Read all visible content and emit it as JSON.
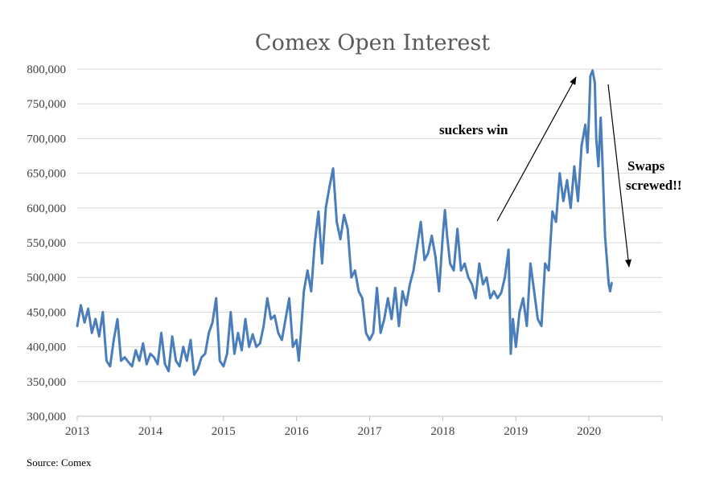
{
  "chart_data": {
    "type": "line",
    "title": "Comex Open Interest",
    "xlabel": "",
    "ylabel": "",
    "x_ticks": [
      "2013",
      "2014",
      "2015",
      "2016",
      "2017",
      "2018",
      "2019",
      "2020"
    ],
    "y_ticks": [
      "300,000",
      "350,000",
      "400,000",
      "450,000",
      "500,000",
      "550,000",
      "600,000",
      "650,000",
      "700,000",
      "750,000",
      "800,000"
    ],
    "xlim": [
      2013.0,
      2021.0
    ],
    "ylim": [
      300000,
      800000
    ],
    "grid": "horizontal",
    "legend": "none",
    "series": [
      {
        "color": "#4a7ebb",
        "points": [
          [
            2013.0,
            430000
          ],
          [
            2013.05,
            460000
          ],
          [
            2013.1,
            435000
          ],
          [
            2013.15,
            455000
          ],
          [
            2013.2,
            420000
          ],
          [
            2013.25,
            440000
          ],
          [
            2013.3,
            415000
          ],
          [
            2013.35,
            450000
          ],
          [
            2013.4,
            380000
          ],
          [
            2013.45,
            372000
          ],
          [
            2013.5,
            410000
          ],
          [
            2013.55,
            440000
          ],
          [
            2013.6,
            380000
          ],
          [
            2013.65,
            385000
          ],
          [
            2013.7,
            378000
          ],
          [
            2013.75,
            372000
          ],
          [
            2013.8,
            395000
          ],
          [
            2013.85,
            380000
          ],
          [
            2013.9,
            405000
          ],
          [
            2013.95,
            375000
          ],
          [
            2014.0,
            390000
          ],
          [
            2014.05,
            385000
          ],
          [
            2014.1,
            375000
          ],
          [
            2014.15,
            420000
          ],
          [
            2014.2,
            375000
          ],
          [
            2014.25,
            365000
          ],
          [
            2014.3,
            415000
          ],
          [
            2014.35,
            380000
          ],
          [
            2014.4,
            372000
          ],
          [
            2014.45,
            400000
          ],
          [
            2014.5,
            380000
          ],
          [
            2014.55,
            410000
          ],
          [
            2014.6,
            360000
          ],
          [
            2014.65,
            368000
          ],
          [
            2014.7,
            385000
          ],
          [
            2014.75,
            390000
          ],
          [
            2014.8,
            420000
          ],
          [
            2014.85,
            435000
          ],
          [
            2014.9,
            470000
          ],
          [
            2014.95,
            380000
          ],
          [
            2015.0,
            372000
          ],
          [
            2015.05,
            390000
          ],
          [
            2015.1,
            450000
          ],
          [
            2015.15,
            390000
          ],
          [
            2015.2,
            420000
          ],
          [
            2015.25,
            395000
          ],
          [
            2015.3,
            440000
          ],
          [
            2015.35,
            400000
          ],
          [
            2015.4,
            418000
          ],
          [
            2015.45,
            400000
          ],
          [
            2015.5,
            405000
          ],
          [
            2015.55,
            430000
          ],
          [
            2015.6,
            470000
          ],
          [
            2015.65,
            440000
          ],
          [
            2015.7,
            445000
          ],
          [
            2015.75,
            420000
          ],
          [
            2015.8,
            410000
          ],
          [
            2015.85,
            440000
          ],
          [
            2015.9,
            470000
          ],
          [
            2015.95,
            400000
          ],
          [
            2016.0,
            410000
          ],
          [
            2016.03,
            380000
          ],
          [
            2016.06,
            420000
          ],
          [
            2016.1,
            480000
          ],
          [
            2016.15,
            510000
          ],
          [
            2016.2,
            480000
          ],
          [
            2016.25,
            550000
          ],
          [
            2016.3,
            595000
          ],
          [
            2016.35,
            520000
          ],
          [
            2016.4,
            600000
          ],
          [
            2016.45,
            630000
          ],
          [
            2016.5,
            657000
          ],
          [
            2016.55,
            580000
          ],
          [
            2016.6,
            555000
          ],
          [
            2016.65,
            590000
          ],
          [
            2016.7,
            570000
          ],
          [
            2016.75,
            500000
          ],
          [
            2016.8,
            510000
          ],
          [
            2016.85,
            480000
          ],
          [
            2016.9,
            470000
          ],
          [
            2016.95,
            420000
          ],
          [
            2017.0,
            410000
          ],
          [
            2017.05,
            420000
          ],
          [
            2017.1,
            485000
          ],
          [
            2017.15,
            420000
          ],
          [
            2017.2,
            440000
          ],
          [
            2017.25,
            470000
          ],
          [
            2017.3,
            440000
          ],
          [
            2017.35,
            485000
          ],
          [
            2017.4,
            430000
          ],
          [
            2017.45,
            480000
          ],
          [
            2017.5,
            460000
          ],
          [
            2017.55,
            490000
          ],
          [
            2017.6,
            510000
          ],
          [
            2017.65,
            545000
          ],
          [
            2017.7,
            580000
          ],
          [
            2017.75,
            525000
          ],
          [
            2017.8,
            535000
          ],
          [
            2017.85,
            560000
          ],
          [
            2017.9,
            530000
          ],
          [
            2017.95,
            480000
          ],
          [
            2018.0,
            560000
          ],
          [
            2018.03,
            597000
          ],
          [
            2018.06,
            560000
          ],
          [
            2018.1,
            520000
          ],
          [
            2018.15,
            510000
          ],
          [
            2018.2,
            570000
          ],
          [
            2018.25,
            510000
          ],
          [
            2018.3,
            520000
          ],
          [
            2018.35,
            500000
          ],
          [
            2018.4,
            490000
          ],
          [
            2018.45,
            470000
          ],
          [
            2018.5,
            520000
          ],
          [
            2018.55,
            490000
          ],
          [
            2018.6,
            500000
          ],
          [
            2018.65,
            470000
          ],
          [
            2018.7,
            480000
          ],
          [
            2018.75,
            470000
          ],
          [
            2018.8,
            478000
          ],
          [
            2018.85,
            500000
          ],
          [
            2018.9,
            540000
          ],
          [
            2018.93,
            390000
          ],
          [
            2018.96,
            440000
          ],
          [
            2019.0,
            400000
          ],
          [
            2019.05,
            450000
          ],
          [
            2019.1,
            470000
          ],
          [
            2019.15,
            430000
          ],
          [
            2019.2,
            520000
          ],
          [
            2019.25,
            480000
          ],
          [
            2019.3,
            440000
          ],
          [
            2019.35,
            430000
          ],
          [
            2019.4,
            520000
          ],
          [
            2019.45,
            510000
          ],
          [
            2019.5,
            595000
          ],
          [
            2019.55,
            580000
          ],
          [
            2019.6,
            650000
          ],
          [
            2019.65,
            610000
          ],
          [
            2019.7,
            640000
          ],
          [
            2019.75,
            600000
          ],
          [
            2019.8,
            660000
          ],
          [
            2019.85,
            610000
          ],
          [
            2019.9,
            690000
          ],
          [
            2019.95,
            720000
          ],
          [
            2019.98,
            680000
          ],
          [
            2020.0,
            730000
          ],
          [
            2020.02,
            790000
          ],
          [
            2020.05,
            798000
          ],
          [
            2020.08,
            780000
          ],
          [
            2020.1,
            700000
          ],
          [
            2020.13,
            660000
          ],
          [
            2020.16,
            730000
          ],
          [
            2020.18,
            680000
          ],
          [
            2020.2,
            620000
          ],
          [
            2020.22,
            560000
          ],
          [
            2020.25,
            520000
          ],
          [
            2020.27,
            490000
          ],
          [
            2020.29,
            480000
          ],
          [
            2020.31,
            492000
          ]
        ]
      }
    ],
    "annotations": [
      {
        "text": "suckers win"
      },
      {
        "text": "Swaps"
      },
      {
        "text": "screwed!!"
      }
    ]
  },
  "source_text": "Source: Comex"
}
